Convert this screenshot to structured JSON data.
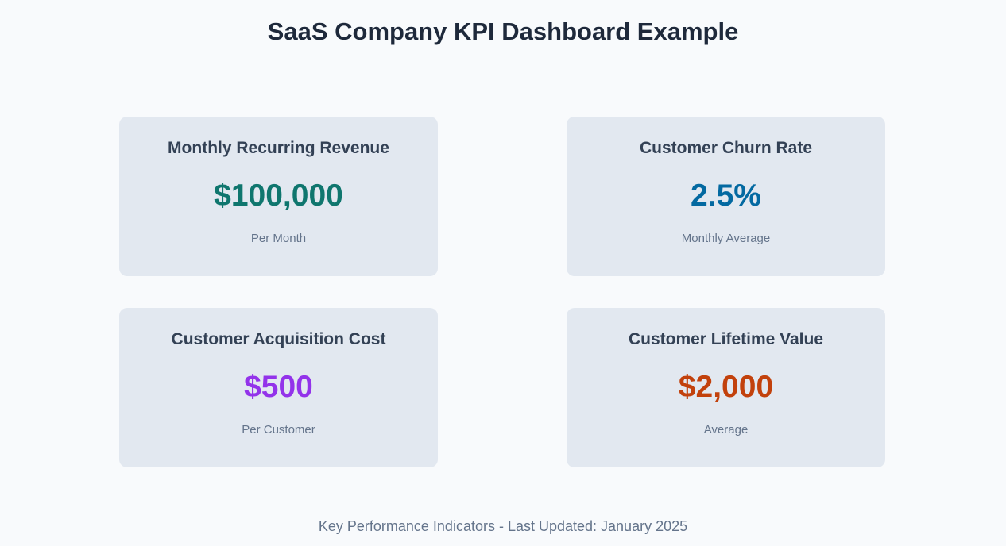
{
  "page": {
    "title": "SaaS Company KPI Dashboard Example",
    "footer": "Key Performance Indicators - Last Updated: January 2025"
  },
  "kpis": [
    {
      "label": "Monthly Recurring Revenue",
      "value": "$100,000",
      "sub": "Per Month",
      "color": "#0f766e"
    },
    {
      "label": "Customer Churn Rate",
      "value": "2.5%",
      "sub": "Monthly Average",
      "color": "#0369a1"
    },
    {
      "label": "Customer Acquisition Cost",
      "value": "$500",
      "sub": "Per Customer",
      "color": "#9333ea"
    },
    {
      "label": "Customer Lifetime Value",
      "value": "$2,000",
      "sub": "Average",
      "color": "#c2410c"
    }
  ]
}
